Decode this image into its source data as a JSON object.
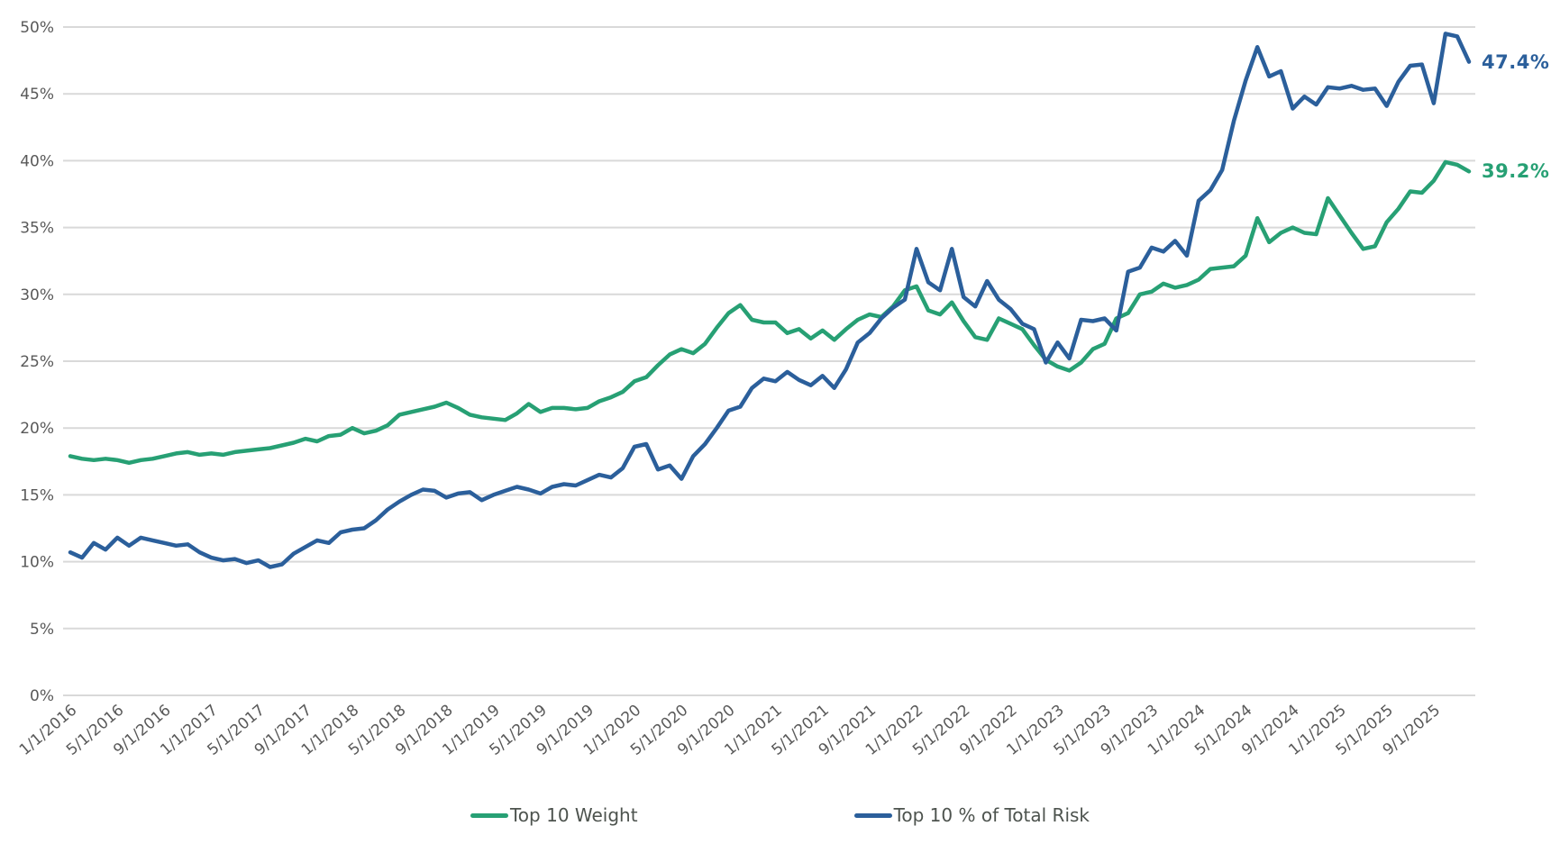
{
  "chart_data": {
    "type": "line",
    "title": "",
    "xlabel": "",
    "ylabel": "",
    "start_date": "1/1/2016",
    "frequency": "monthly",
    "grid": "horizontal",
    "gridline_color": "#d9d9d9",
    "axis_text_color": "#595959",
    "legend_position": "bottom",
    "ylim": [
      0,
      50
    ],
    "y_tick_labels": [
      "0%",
      "5%",
      "10%",
      "15%",
      "20%",
      "25%",
      "30%",
      "35%",
      "40%",
      "45%",
      "50%"
    ],
    "x_tick_labels": [
      "1/1/2016",
      "5/1/2016",
      "9/1/2016",
      "1/1/2017",
      "5/1/2017",
      "9/1/2017",
      "1/1/2018",
      "5/1/2018",
      "9/1/2018",
      "1/1/2019",
      "5/1/2019",
      "9/1/2019",
      "1/1/2020",
      "5/1/2020",
      "9/1/2020",
      "1/1/2021",
      "5/1/2021",
      "9/1/2021",
      "1/1/2022",
      "5/1/2022",
      "9/1/2022",
      "1/1/2023",
      "5/1/2023",
      "9/1/2023",
      "1/1/2024",
      "5/1/2024",
      "9/1/2024",
      "1/1/2025",
      "5/1/2025",
      "9/1/2025"
    ],
    "x_tick_every_n_points": 4,
    "series": [
      {
        "name": "Top 10 Weight",
        "color": "#27a074",
        "end_label": "39.2%",
        "values": [
          17.9,
          17.7,
          17.6,
          17.7,
          17.6,
          17.4,
          17.6,
          17.7,
          17.9,
          18.1,
          18.2,
          18.0,
          18.1,
          18.0,
          18.2,
          18.3,
          18.4,
          18.5,
          18.7,
          18.9,
          19.2,
          19.0,
          19.4,
          19.5,
          20.0,
          19.6,
          19.8,
          20.2,
          21.0,
          21.2,
          21.4,
          21.6,
          21.9,
          21.5,
          21.0,
          20.8,
          20.7,
          20.6,
          21.1,
          21.8,
          21.2,
          21.5,
          21.5,
          21.4,
          21.5,
          22.0,
          22.3,
          22.7,
          23.5,
          23.8,
          24.7,
          25.5,
          25.9,
          25.6,
          26.3,
          27.5,
          28.6,
          29.2,
          28.1,
          27.9,
          27.9,
          27.1,
          27.4,
          26.7,
          27.3,
          26.6,
          27.4,
          28.1,
          28.5,
          28.3,
          29.1,
          30.3,
          30.6,
          28.8,
          28.5,
          29.4,
          28.0,
          26.8,
          26.6,
          28.2,
          27.8,
          27.4,
          26.2,
          25.1,
          24.6,
          24.3,
          24.9,
          25.9,
          26.3,
          28.2,
          28.6,
          30.0,
          30.2,
          30.8,
          30.5,
          30.7,
          31.1,
          31.9,
          32.0,
          32.1,
          32.9,
          35.7,
          33.9,
          34.6,
          35.0,
          34.6,
          34.5,
          37.2,
          35.9,
          34.6,
          33.4,
          33.6,
          35.4,
          36.4,
          37.7,
          37.6,
          38.5,
          39.9,
          39.7,
          39.2
        ]
      },
      {
        "name": "Top 10 % of Total Risk",
        "color": "#2b5f9b",
        "end_label": "47.4%",
        "values": [
          10.7,
          10.3,
          11.4,
          10.9,
          11.8,
          11.2,
          11.8,
          11.6,
          11.4,
          11.2,
          11.3,
          10.7,
          10.3,
          10.1,
          10.2,
          9.9,
          10.1,
          9.6,
          9.8,
          10.6,
          11.1,
          11.6,
          11.4,
          12.2,
          12.4,
          12.5,
          13.1,
          13.9,
          14.5,
          15.0,
          15.4,
          15.3,
          14.8,
          15.1,
          15.2,
          14.6,
          15.0,
          15.3,
          15.6,
          15.4,
          15.1,
          15.6,
          15.8,
          15.7,
          16.1,
          16.5,
          16.3,
          17.0,
          18.6,
          18.8,
          16.9,
          17.2,
          16.2,
          17.9,
          18.8,
          20.0,
          21.3,
          21.6,
          23.0,
          23.7,
          23.5,
          24.2,
          23.6,
          23.2,
          23.9,
          23.0,
          24.4,
          26.4,
          27.1,
          28.2,
          29.0,
          29.6,
          33.4,
          30.9,
          30.3,
          33.4,
          29.8,
          29.1,
          31.0,
          29.6,
          28.9,
          27.8,
          27.4,
          24.9,
          26.4,
          25.2,
          28.1,
          28.0,
          28.2,
          27.3,
          31.7,
          32.0,
          33.5,
          33.2,
          34.0,
          32.9,
          37.0,
          37.8,
          39.3,
          43.0,
          46.0,
          48.5,
          46.3,
          46.7,
          43.9,
          44.8,
          44.2,
          45.5,
          45.4,
          45.6,
          45.3,
          45.4,
          44.1,
          45.9,
          47.1,
          47.2,
          44.3,
          49.5,
          49.3,
          47.4
        ]
      }
    ]
  }
}
